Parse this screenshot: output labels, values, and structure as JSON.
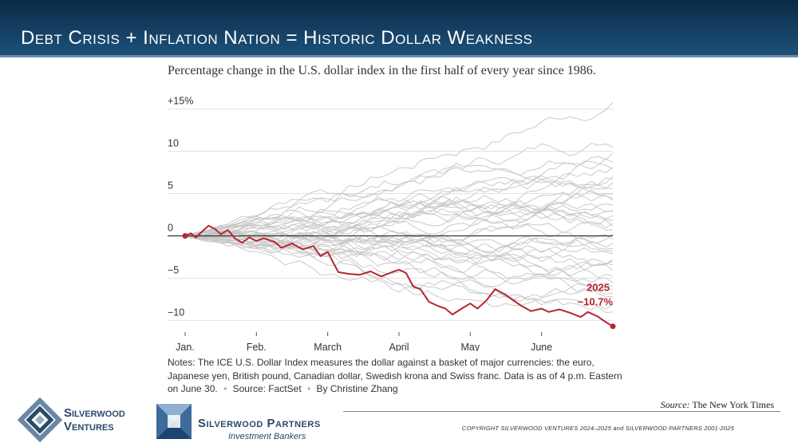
{
  "header": {
    "title": "Debt Crisis + Inflation Nation = Historic Dollar Weakness"
  },
  "chart_data": {
    "type": "line",
    "title": "Percentage change in the U.S. dollar index in the first half of every year since 1986.",
    "xlabel": "",
    "ylabel": "",
    "ylim": [
      -11,
      16
    ],
    "y_ticks": [
      {
        "value": 15,
        "label": "+15%"
      },
      {
        "value": 10,
        "label": "10"
      },
      {
        "value": 5,
        "label": "5"
      },
      {
        "value": 0,
        "label": "0"
      },
      {
        "value": -5,
        "label": "−5"
      },
      {
        "value": -10,
        "label": "−10"
      }
    ],
    "x_ticks": [
      {
        "month": 0,
        "label": "Jan."
      },
      {
        "month": 1,
        "label": "Feb."
      },
      {
        "month": 2,
        "label": "March"
      },
      {
        "month": 3,
        "label": "April"
      },
      {
        "month": 4,
        "label": "May"
      },
      {
        "month": 5,
        "label": "June"
      }
    ],
    "x_range_months": [
      0,
      6
    ],
    "highlight_series": {
      "name": "2025",
      "end_label": "−10.7%",
      "color": "#b5262f",
      "points": [
        [
          0.0,
          0.0
        ],
        [
          0.08,
          0.3
        ],
        [
          0.15,
          -0.2
        ],
        [
          0.25,
          0.6
        ],
        [
          0.33,
          1.2
        ],
        [
          0.42,
          0.8
        ],
        [
          0.5,
          0.2
        ],
        [
          0.6,
          0.7
        ],
        [
          0.7,
          -0.3
        ],
        [
          0.8,
          -0.8
        ],
        [
          0.9,
          -0.2
        ],
        [
          1.0,
          -0.6
        ],
        [
          1.1,
          -0.3
        ],
        [
          1.25,
          -0.7
        ],
        [
          1.35,
          -1.4
        ],
        [
          1.5,
          -0.9
        ],
        [
          1.65,
          -1.6
        ],
        [
          1.8,
          -1.2
        ],
        [
          1.9,
          -2.4
        ],
        [
          2.0,
          -1.9
        ],
        [
          2.08,
          -3.2
        ],
        [
          2.15,
          -4.3
        ],
        [
          2.3,
          -4.5
        ],
        [
          2.45,
          -4.6
        ],
        [
          2.6,
          -4.2
        ],
        [
          2.75,
          -4.8
        ],
        [
          2.9,
          -4.3
        ],
        [
          3.0,
          -4.0
        ],
        [
          3.1,
          -4.4
        ],
        [
          3.2,
          -6.0
        ],
        [
          3.3,
          -6.3
        ],
        [
          3.42,
          -7.8
        ],
        [
          3.55,
          -8.3
        ],
        [
          3.65,
          -8.6
        ],
        [
          3.75,
          -9.3
        ],
        [
          3.88,
          -8.6
        ],
        [
          4.0,
          -8.0
        ],
        [
          4.1,
          -8.6
        ],
        [
          4.22,
          -7.7
        ],
        [
          4.35,
          -6.3
        ],
        [
          4.48,
          -6.9
        ],
        [
          4.6,
          -7.6
        ],
        [
          4.72,
          -8.3
        ],
        [
          4.85,
          -8.9
        ],
        [
          5.0,
          -8.6
        ],
        [
          5.1,
          -9.0
        ],
        [
          5.25,
          -8.7
        ],
        [
          5.4,
          -9.1
        ],
        [
          5.55,
          -9.6
        ],
        [
          5.65,
          -9.0
        ],
        [
          5.78,
          -9.5
        ],
        [
          5.9,
          -10.2
        ],
        [
          6.0,
          -10.7
        ]
      ]
    },
    "background_series_end_values": [
      15.8,
      10.5,
      9.8,
      8.7,
      7.9,
      7.0,
      6.3,
      5.6,
      4.9,
      4.2,
      3.6,
      3.0,
      2.4,
      1.8,
      1.2,
      0.7,
      0.2,
      -0.4,
      -0.9,
      -1.5,
      -2.1,
      -2.8,
      -3.4,
      -4.1,
      -4.8,
      -5.6,
      -6.3,
      -7.2,
      -8.1,
      -9.0,
      -3.0,
      2.9,
      6.7,
      -5.9,
      1.5,
      4.4,
      -1.8,
      8.1,
      -6.8
    ]
  },
  "notes": {
    "text": "Notes: The ICE U.S. Dollar Index measures the dollar against a basket of major currencies: the euro, Japanese yen, British pound, Canadian dollar, Swedish krona and Swiss franc. Data is as of 4 p.m. Eastern on June 30.",
    "source": "Source: FactSet",
    "byline": "By Christine Zhang"
  },
  "source": {
    "label": "Source:",
    "value": "The New York Times"
  },
  "footer": {
    "copyright": "COPYRIGHT SILVERWOOD VENTURES 2024–2025 and SILVERWOOD PARTNERS 2001-2025",
    "logo1_line1": "Silverwood",
    "logo1_line2": "Ventures",
    "logo2_name": "Silverwood Partners",
    "logo2_sub": "Investment Bankers"
  },
  "colors": {
    "header_bg": "#123c5e",
    "highlight": "#b5262f",
    "background_lines": "#c4c4c4",
    "zero_line": "#333333",
    "brand": "#2a4a6a"
  }
}
